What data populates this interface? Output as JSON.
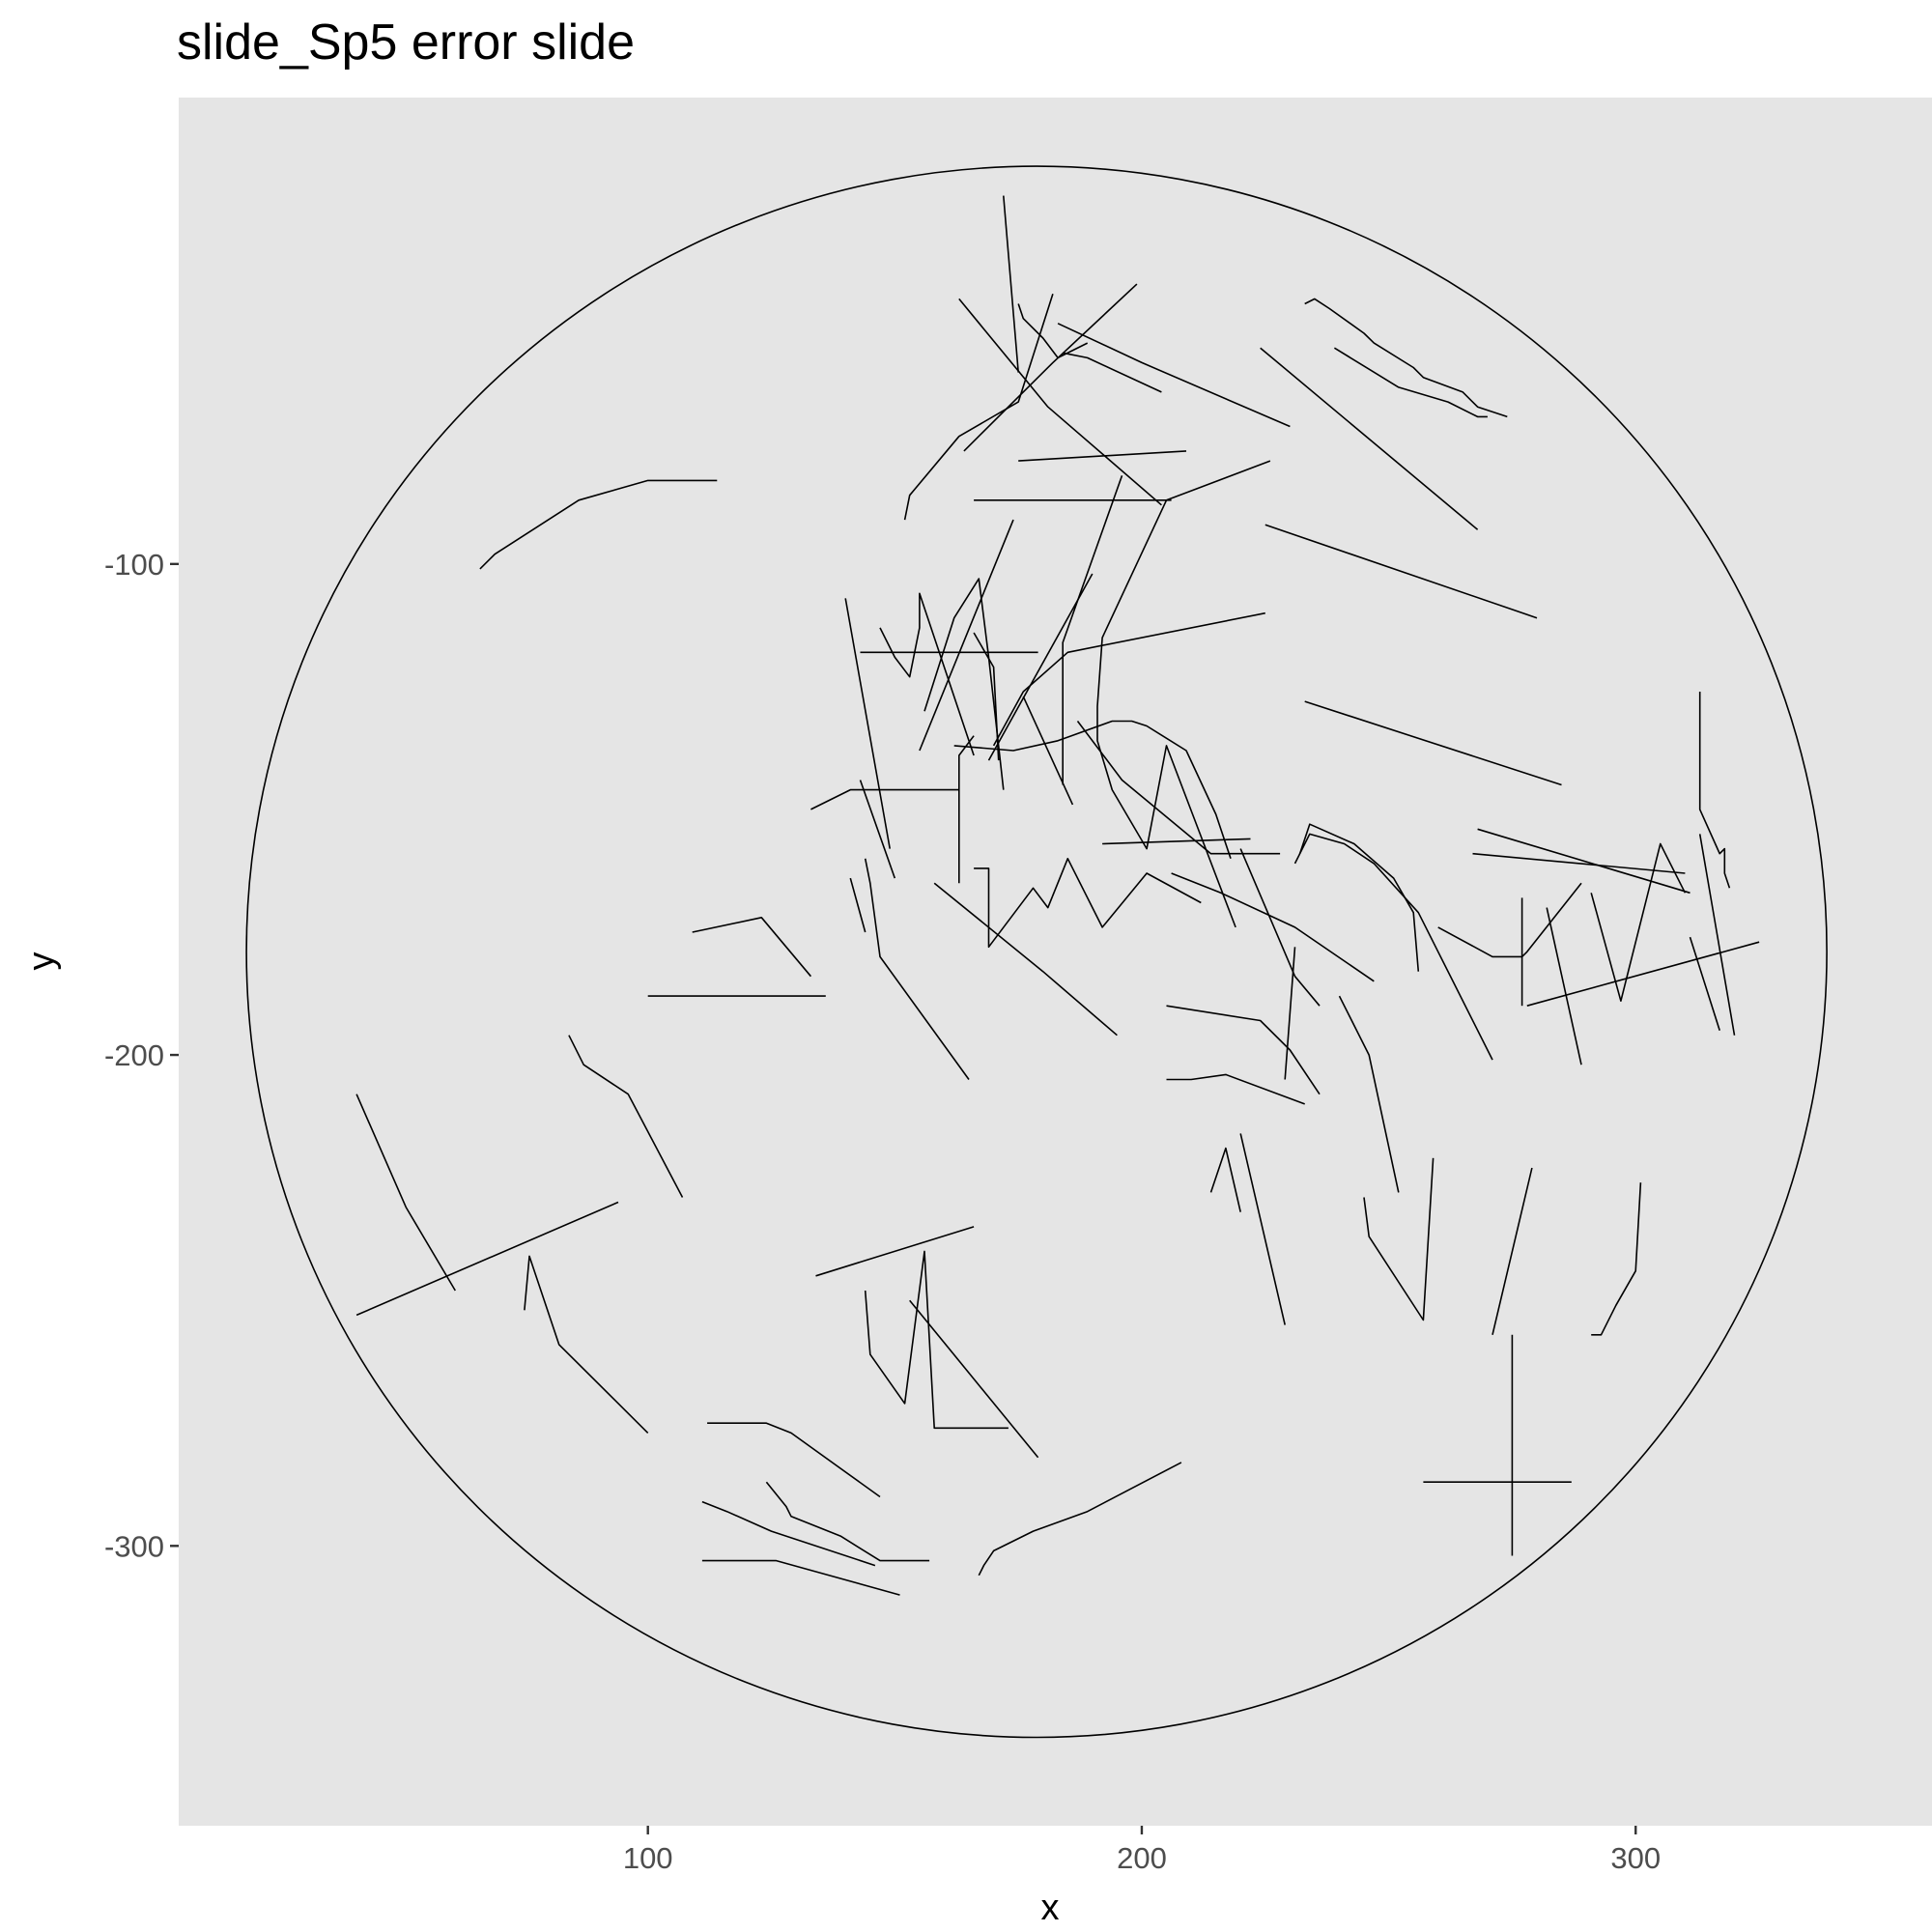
{
  "chart_data": {
    "type": "line",
    "title": "slide_Sp5 error slide",
    "xlabel": "x",
    "ylabel": "y",
    "xlim": [
      5,
      360
    ],
    "ylim": [
      -357,
      -5
    ],
    "x_ticks": [
      100,
      200,
      300
    ],
    "x_tick_labels": [
      "100",
      "200",
      "300"
    ],
    "y_ticks": [
      -100,
      -200,
      -300
    ],
    "y_tick_labels": [
      "-100",
      "-200",
      "-300"
    ],
    "grid": false,
    "background": "#e5e5e5",
    "line_color": "#000000",
    "circle": {
      "cx": 178.7,
      "cy": -179,
      "r": 160
    },
    "series": [
      {
        "name": "s1",
        "x": [
          172,
          175
        ],
        "y": [
          -25,
          -61
        ]
      },
      {
        "name": "s2",
        "x": [
          163,
          181,
          204
        ],
        "y": [
          -46,
          -68,
          -88
        ]
      },
      {
        "name": "s3",
        "x": [
          152,
          153,
          163,
          175,
          182
        ],
        "y": [
          -91,
          -86,
          -74,
          -67,
          -45
        ]
      },
      {
        "name": "s4",
        "x": [
          164,
          182,
          199
        ],
        "y": [
          -77,
          -59,
          -43
        ]
      },
      {
        "name": "s5",
        "x": [
          175,
          176,
          180,
          183,
          189
        ],
        "y": [
          -47,
          -50,
          -54,
          -58,
          -55
        ]
      },
      {
        "name": "s6",
        "x": [
          184,
          189,
          204
        ],
        "y": [
          -57,
          -58,
          -65
        ]
      },
      {
        "name": "s7",
        "x": [
          183,
          200,
          230
        ],
        "y": [
          -51,
          -59,
          -72
        ]
      },
      {
        "name": "s8",
        "x": [
          175,
          209
        ],
        "y": [
          -79,
          -77
        ]
      },
      {
        "name": "s9",
        "x": [
          166,
          206
        ],
        "y": [
          -87,
          -87
        ]
      },
      {
        "name": "s10",
        "x": [
          196,
          184,
          184
        ],
        "y": [
          -82,
          -116,
          -145
        ]
      },
      {
        "name": "s11",
        "x": [
          205,
          192,
          191,
          191,
          194,
          201,
          205,
          219
        ],
        "y": [
          -87,
          -115,
          -129,
          -136,
          -146,
          -158,
          -137,
          -174
        ]
      },
      {
        "name": "s12",
        "x": [
          205,
          226
        ],
        "y": [
          -87,
          -79
        ]
      },
      {
        "name": "s13",
        "x": [
          233,
          235,
          238,
          245,
          247,
          255,
          257,
          265,
          268,
          274
        ],
        "y": [
          -47,
          -46,
          -48,
          -53,
          -55,
          -60,
          -62,
          -65,
          -68,
          -70
        ]
      },
      {
        "name": "s14",
        "x": [
          224,
          268
        ],
        "y": [
          -56,
          -93
        ]
      },
      {
        "name": "s15",
        "x": [
          239,
          252,
          262,
          268,
          270
        ],
        "y": [
          -56,
          -64,
          -67,
          -70,
          -70
        ]
      },
      {
        "name": "s16",
        "x": [
          66,
          69,
          86,
          100,
          114
        ],
        "y": [
          -101,
          -98,
          -87,
          -83,
          -83
        ]
      },
      {
        "name": "s17",
        "x": [
          225,
          280
        ],
        "y": [
          -92,
          -111
        ]
      },
      {
        "name": "s18",
        "x": [
          140,
          149
        ],
        "y": [
          -107,
          -158
        ]
      },
      {
        "name": "s19",
        "x": [
          143,
          179
        ],
        "y": [
          -118,
          -118
        ]
      },
      {
        "name": "s20",
        "x": [
          147,
          150,
          153,
          155,
          155,
          166
        ],
        "y": [
          -113,
          -119,
          -123,
          -113,
          -106,
          -139
        ]
      },
      {
        "name": "s21",
        "x": [
          155,
          174
        ],
        "y": [
          -138,
          -91
        ]
      },
      {
        "name": "s22",
        "x": [
          156,
          162,
          167,
          169,
          172
        ],
        "y": [
          -130,
          -111,
          -103,
          -119,
          -146
        ]
      },
      {
        "name": "s23",
        "x": [
          166,
          170,
          171
        ],
        "y": [
          -114,
          -121,
          -140
        ]
      },
      {
        "name": "s24",
        "x": [
          169,
          190
        ],
        "y": [
          -140,
          -102
        ]
      },
      {
        "name": "s25",
        "x": [
          170,
          176,
          185,
          225
        ],
        "y": [
          -137,
          -126,
          -118,
          -110
        ]
      },
      {
        "name": "s26",
        "x": [
          166,
          163,
          163
        ],
        "y": [
          -135,
          -139,
          -165
        ]
      },
      {
        "name": "s27",
        "x": [
          176,
          186
        ],
        "y": [
          -127,
          -149
        ]
      },
      {
        "name": "s28",
        "x": [
          162,
          174,
          183,
          194,
          198,
          201,
          209,
          215,
          218
        ],
        "y": [
          -137,
          -138,
          -136,
          -132,
          -132,
          -133,
          -138,
          -151,
          -160
        ]
      },
      {
        "name": "s29",
        "x": [
          187,
          196,
          214,
          228
        ],
        "y": [
          -132,
          -144,
          -159,
          -159
        ]
      },
      {
        "name": "s30",
        "x": [
          233,
          285
        ],
        "y": [
          -128,
          -145
        ]
      },
      {
        "name": "s31",
        "x": [
          143,
          150
        ],
        "y": [
          -144,
          -164
        ]
      },
      {
        "name": "s32",
        "x": [
          133,
          141,
          163
        ],
        "y": [
          -150,
          -146,
          -146
        ]
      },
      {
        "name": "s33",
        "x": [
          141,
          144
        ],
        "y": [
          -164,
          -175
        ]
      },
      {
        "name": "s34",
        "x": [
          192,
          222
        ],
        "y": [
          -157,
          -156
        ]
      },
      {
        "name": "s35",
        "x": [
          232,
          234,
          243,
          251,
          255,
          256
        ],
        "y": [
          -159,
          -153,
          -157,
          -164,
          -171,
          -183
        ]
      },
      {
        "name": "s36",
        "x": [
          231,
          234,
          241,
          247,
          256,
          271
        ],
        "y": [
          -161,
          -155,
          -157,
          -161,
          -171,
          -201
        ]
      },
      {
        "name": "s37",
        "x": [
          268,
          311
        ],
        "y": [
          -154,
          -167
        ]
      },
      {
        "name": "s38",
        "x": [
          267,
          310
        ],
        "y": [
          -159,
          -163
        ]
      },
      {
        "name": "s39",
        "x": [
          220,
          231,
          236
        ],
        "y": [
          -158,
          -184,
          -190
        ]
      },
      {
        "name": "s40",
        "x": [
          313,
          313,
          317,
          318,
          318,
          319
        ],
        "y": [
          -126,
          -150,
          -159,
          -158,
          -163,
          -166
        ]
      },
      {
        "name": "s41",
        "x": [
          144,
          145,
          147,
          165
        ],
        "y": [
          -160,
          -165,
          -180,
          -205
        ]
      },
      {
        "name": "s42",
        "x": [
          158,
          180,
          195
        ],
        "y": [
          -165,
          -183,
          -196
        ]
      },
      {
        "name": "s43",
        "x": [
          166,
          169,
          169,
          178,
          181,
          185,
          192,
          201,
          212
        ],
        "y": [
          -162,
          -162,
          -178,
          -166,
          -170,
          -160,
          -174,
          -163,
          -169
        ]
      },
      {
        "name": "s44",
        "x": [
          206,
          216,
          231,
          247
        ],
        "y": [
          -163,
          -167,
          -174,
          -185
        ]
      },
      {
        "name": "s45",
        "x": [
          260,
          271,
          277,
          278,
          289
        ],
        "y": [
          -174,
          -180,
          -180,
          -179,
          -165
        ]
      },
      {
        "name": "s46",
        "x": [
          277,
          277
        ],
        "y": [
          -168,
          -190
        ]
      },
      {
        "name": "s47",
        "x": [
          282,
          289
        ],
        "y": [
          -170,
          -202
        ]
      },
      {
        "name": "s48",
        "x": [
          291,
          297,
          305,
          306,
          310
        ],
        "y": [
          -167,
          -189,
          -157,
          -159,
          -167
        ]
      },
      {
        "name": "s49",
        "x": [
          313,
          320
        ],
        "y": [
          -155,
          -196
        ]
      },
      {
        "name": "s50",
        "x": [
          311,
          317
        ],
        "y": [
          -176,
          -195
        ]
      },
      {
        "name": "s51",
        "x": [
          278,
          325
        ],
        "y": [
          -190,
          -177
        ]
      },
      {
        "name": "s52",
        "x": [
          205,
          224,
          230,
          236
        ],
        "y": [
          -190,
          -193,
          -199,
          -208
        ]
      },
      {
        "name": "s53",
        "x": [
          229,
          231
        ],
        "y": [
          -205,
          -178
        ]
      },
      {
        "name": "s54",
        "x": [
          240,
          246,
          252
        ],
        "y": [
          -188,
          -200,
          -228
        ]
      },
      {
        "name": "s55",
        "x": [
          205,
          210,
          217,
          233
        ],
        "y": [
          -205,
          -205,
          -204,
          -210
        ]
      },
      {
        "name": "s56",
        "x": [
          109,
          123,
          133
        ],
        "y": [
          -175,
          -172,
          -184
        ]
      },
      {
        "name": "s57",
        "x": [
          100,
          136
        ],
        "y": [
          -188,
          -188
        ]
      },
      {
        "name": "s58",
        "x": [
          84,
          87,
          96,
          107
        ],
        "y": [
          -196,
          -202,
          -208,
          -229
        ]
      },
      {
        "name": "s59",
        "x": [
          41,
          51,
          61
        ],
        "y": [
          -208,
          -231,
          -248
        ]
      },
      {
        "name": "s60",
        "x": [
          41,
          94
        ],
        "y": [
          -253,
          -230
        ]
      },
      {
        "name": "s61",
        "x": [
          75,
          76,
          82,
          100
        ],
        "y": [
          -252,
          -241,
          -259,
          -277
        ]
      },
      {
        "name": "s62",
        "x": [
          214,
          217,
          220
        ],
        "y": [
          -228,
          -219,
          -232
        ]
      },
      {
        "name": "s63",
        "x": [
          220,
          229
        ],
        "y": [
          -216,
          -255
        ]
      },
      {
        "name": "s64",
        "x": [
          245,
          246,
          257,
          259
        ],
        "y": [
          -229,
          -237,
          -254,
          -221
        ]
      },
      {
        "name": "s65",
        "x": [
          271,
          279
        ],
        "y": [
          -257,
          -223
        ]
      },
      {
        "name": "s66",
        "x": [
          291,
          293,
          296,
          300,
          301
        ],
        "y": [
          -257,
          -257,
          -251,
          -244,
          -226
        ]
      },
      {
        "name": "s67",
        "x": [
          134,
          166
        ],
        "y": [
          -245,
          -235
        ]
      },
      {
        "name": "s68",
        "x": [
          144,
          145,
          152,
          156,
          158,
          173
        ],
        "y": [
          -248,
          -261,
          -271,
          -240,
          -276,
          -276
        ]
      },
      {
        "name": "s69",
        "x": [
          153,
          179
        ],
        "y": [
          -250,
          -282
        ]
      },
      {
        "name": "s70",
        "x": [
          112,
          124,
          129,
          147
        ],
        "y": [
          -275,
          -275,
          -277,
          -290
        ]
      },
      {
        "name": "s71",
        "x": [
          257,
          287
        ],
        "y": [
          -287,
          -287
        ]
      },
      {
        "name": "s72",
        "x": [
          275,
          275
        ],
        "y": [
          -257,
          -302
        ]
      },
      {
        "name": "s73",
        "x": [
          111,
          116,
          125,
          146
        ],
        "y": [
          -291,
          -293,
          -297,
          -304
        ]
      },
      {
        "name": "s74",
        "x": [
          124,
          128,
          129,
          139,
          147,
          157
        ],
        "y": [
          -287,
          -292,
          -294,
          -298,
          -303,
          -303
        ]
      },
      {
        "name": "s75",
        "x": [
          111,
          126,
          151
        ],
        "y": [
          -303,
          -303,
          -310
        ]
      },
      {
        "name": "s76",
        "x": [
          167,
          168,
          170,
          178,
          189,
          208
        ],
        "y": [
          -306,
          -304,
          -301,
          -297,
          -293,
          -283
        ]
      }
    ]
  }
}
